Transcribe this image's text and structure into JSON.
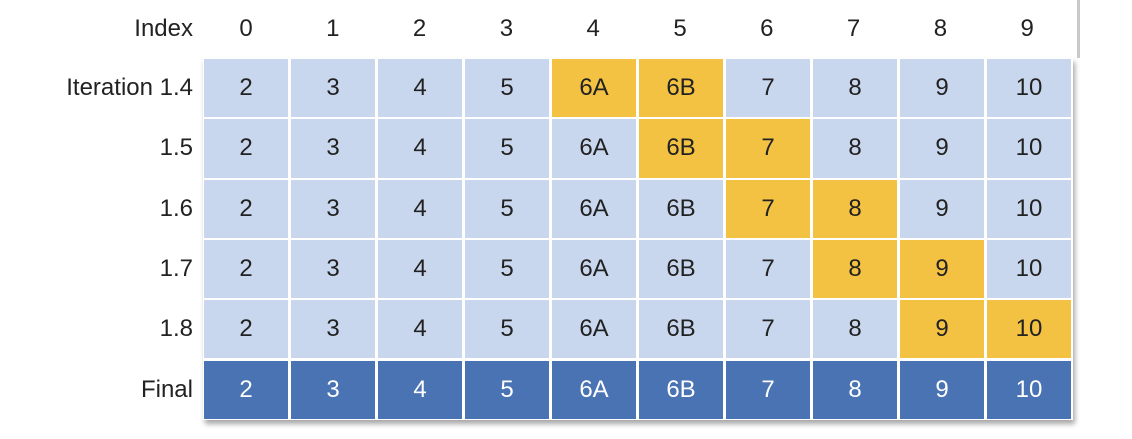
{
  "header": {
    "label": "Index",
    "indices": [
      "0",
      "1",
      "2",
      "3",
      "4",
      "5",
      "6",
      "7",
      "8",
      "9"
    ]
  },
  "rows": [
    {
      "label": "Iteration 1.4",
      "values": [
        "2",
        "3",
        "4",
        "5",
        "6A",
        "6B",
        "7",
        "8",
        "9",
        "10"
      ],
      "highlight": [
        4,
        5
      ],
      "style": "light"
    },
    {
      "label": "1.5",
      "values": [
        "2",
        "3",
        "4",
        "5",
        "6A",
        "6B",
        "7",
        "8",
        "9",
        "10"
      ],
      "highlight": [
        5,
        6
      ],
      "style": "light"
    },
    {
      "label": "1.6",
      "values": [
        "2",
        "3",
        "4",
        "5",
        "6A",
        "6B",
        "7",
        "8",
        "9",
        "10"
      ],
      "highlight": [
        6,
        7
      ],
      "style": "light"
    },
    {
      "label": "1.7",
      "values": [
        "2",
        "3",
        "4",
        "5",
        "6A",
        "6B",
        "7",
        "8",
        "9",
        "10"
      ],
      "highlight": [
        7,
        8
      ],
      "style": "light"
    },
    {
      "label": "1.8",
      "values": [
        "2",
        "3",
        "4",
        "5",
        "6A",
        "6B",
        "7",
        "8",
        "9",
        "10"
      ],
      "highlight": [
        8,
        9
      ],
      "style": "light"
    },
    {
      "label": "Final",
      "values": [
        "2",
        "3",
        "4",
        "5",
        "6A",
        "6B",
        "7",
        "8",
        "9",
        "10"
      ],
      "highlight": [],
      "style": "final"
    }
  ],
  "colors": {
    "cell_light": "#c9d7ee",
    "cell_highlight": "#f3c243",
    "cell_final": "#4a73b4"
  }
}
